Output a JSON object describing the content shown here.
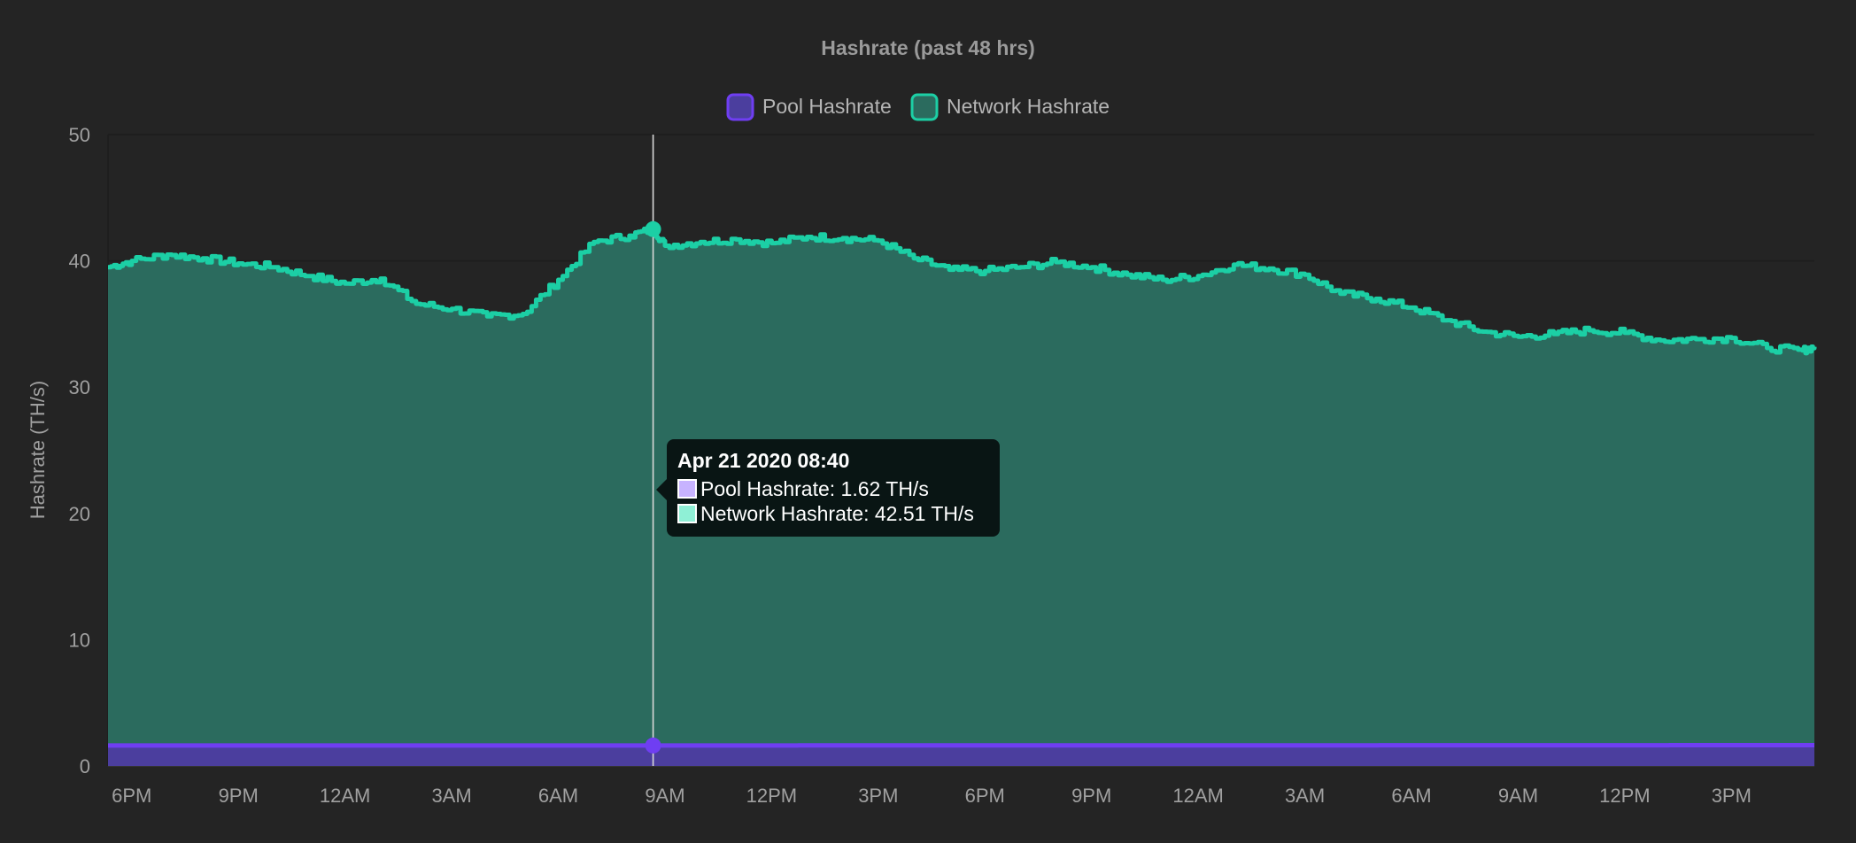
{
  "chart_data": {
    "type": "area",
    "title": "Hashrate (past 48 hrs)",
    "ylabel": "Hashrate (TH/s)",
    "xlabel": "",
    "ylim": [
      0,
      50
    ],
    "yticks": [
      0,
      10,
      20,
      30,
      40,
      50
    ],
    "grid": true,
    "legend_position": "top-center",
    "x_tick_labels": [
      "6PM",
      "9PM",
      "12AM",
      "3AM",
      "6AM",
      "9AM",
      "12PM",
      "3PM",
      "6PM",
      "9PM",
      "12AM",
      "3AM",
      "6AM",
      "9AM",
      "12PM",
      "3PM"
    ],
    "x_start": "Apr 20 2020 17:20",
    "x_end": "Apr 22 2020 17:20",
    "series": [
      {
        "name": "Pool Hashrate",
        "color": "#6f3ef2",
        "fill": "#4b3e9e",
        "x": [
          "Apr 20 2020 17:20",
          "Apr 21 2020 08:40",
          "Apr 22 2020 17:20"
        ],
        "values": [
          1.62,
          1.62,
          1.65
        ]
      },
      {
        "name": "Network Hashrate",
        "color": "#1ccfa5",
        "fill": "#2b6b5e",
        "x": [
          "Apr 20 2020 17:20",
          "Apr 20 2020 18:00",
          "Apr 20 2020 19:00",
          "Apr 20 2020 20:00",
          "Apr 20 2020 21:00",
          "Apr 20 2020 22:00",
          "Apr 20 2020 23:00",
          "Apr 21 2020 00:00",
          "Apr 21 2020 01:00",
          "Apr 21 2020 02:00",
          "Apr 21 2020 03:00",
          "Apr 21 2020 04:00",
          "Apr 21 2020 05:00",
          "Apr 21 2020 06:00",
          "Apr 21 2020 07:00",
          "Apr 21 2020 08:00",
          "Apr 21 2020 08:40",
          "Apr 21 2020 09:00",
          "Apr 21 2020 10:00",
          "Apr 21 2020 11:00",
          "Apr 21 2020 12:00",
          "Apr 21 2020 13:00",
          "Apr 21 2020 14:00",
          "Apr 21 2020 15:00",
          "Apr 21 2020 16:00",
          "Apr 21 2020 17:00",
          "Apr 21 2020 18:00",
          "Apr 21 2020 19:00",
          "Apr 21 2020 20:00",
          "Apr 21 2020 21:00",
          "Apr 21 2020 22:00",
          "Apr 21 2020 23:00",
          "Apr 22 2020 00:00",
          "Apr 22 2020 01:00",
          "Apr 22 2020 02:00",
          "Apr 22 2020 03:00",
          "Apr 22 2020 04:00",
          "Apr 22 2020 05:00",
          "Apr 22 2020 06:00",
          "Apr 22 2020 07:00",
          "Apr 22 2020 08:00",
          "Apr 22 2020 09:00",
          "Apr 22 2020 10:00",
          "Apr 22 2020 11:00",
          "Apr 22 2020 12:00",
          "Apr 22 2020 13:00",
          "Apr 22 2020 14:00",
          "Apr 22 2020 15:00",
          "Apr 22 2020 16:00",
          "Apr 22 2020 17:00",
          "Apr 22 2020 17:20"
        ],
        "values": [
          39.5,
          40.0,
          40.5,
          40.2,
          39.8,
          39.5,
          38.8,
          38.2,
          38.6,
          36.6,
          36.2,
          35.6,
          35.8,
          38.5,
          41.5,
          42.0,
          42.51,
          41.2,
          41.5,
          41.7,
          41.4,
          41.9,
          41.8,
          41.6,
          40.2,
          39.3,
          39.2,
          39.5,
          39.9,
          39.5,
          38.9,
          38.5,
          38.8,
          39.7,
          39.4,
          38.9,
          37.4,
          37.0,
          36.3,
          35.3,
          34.4,
          34.0,
          34.2,
          34.5,
          34.3,
          33.7,
          33.8,
          33.9,
          33.1,
          32.9,
          33.2
        ]
      }
    ],
    "tooltip": {
      "title": "Apr 21 2020 08:40",
      "x": "Apr 21 2020 08:40",
      "lines": [
        "Pool Hashrate: 1.62 TH/s",
        "Network Hashrate: 42.51 TH/s"
      ],
      "swatch_colors": [
        "#c7b3ff",
        "#8ff0d6"
      ]
    }
  }
}
